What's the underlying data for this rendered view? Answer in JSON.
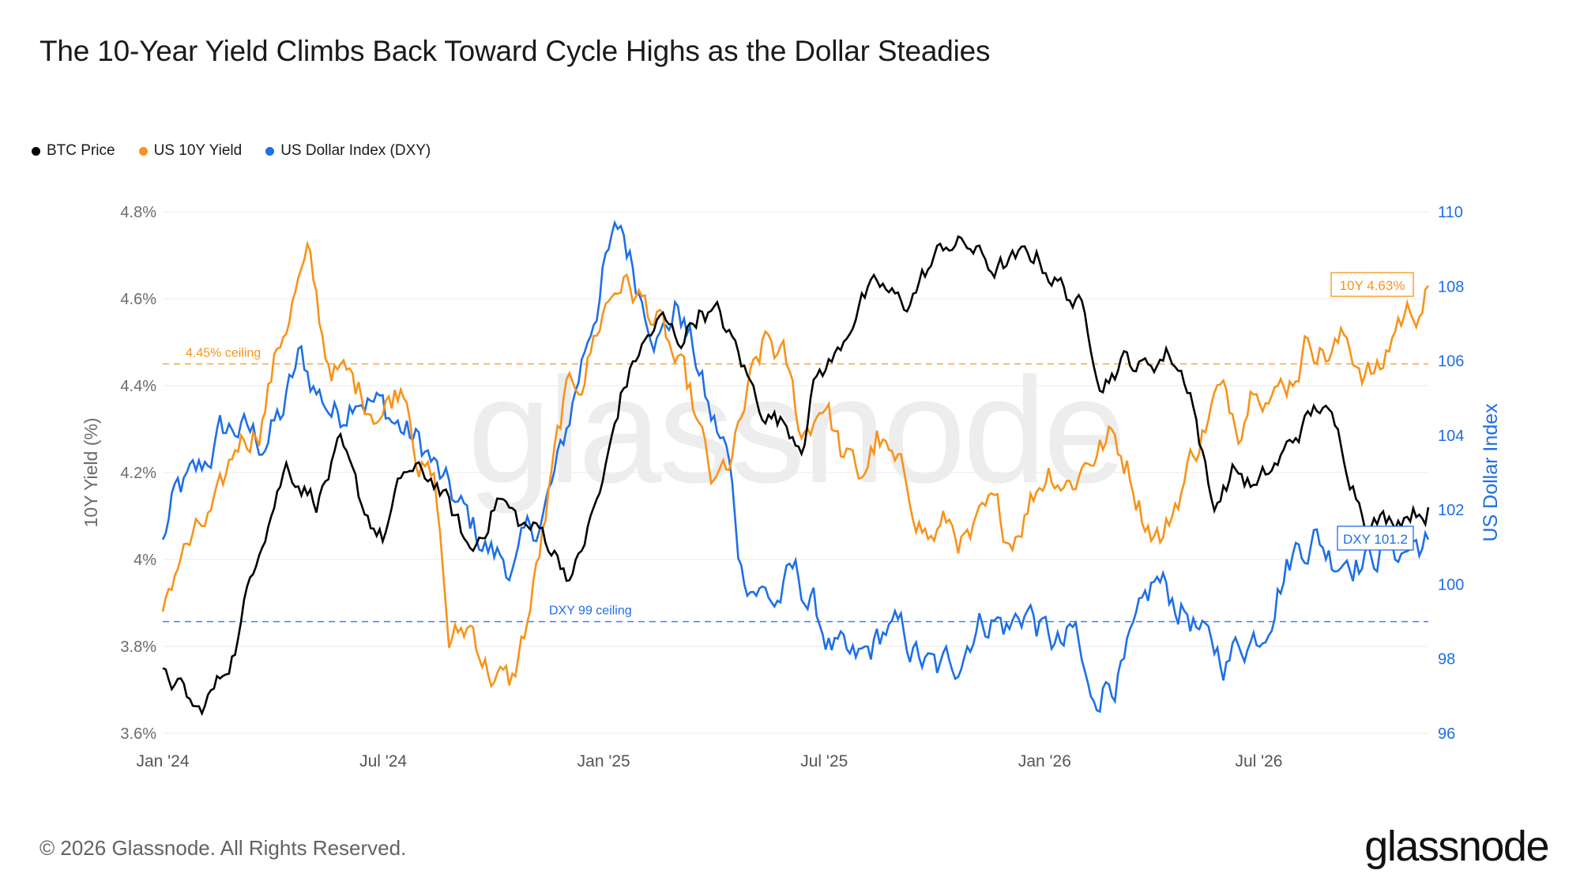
{
  "title": "The 10-Year Yield Climbs Back Toward Cycle Highs as the Dollar Steadies",
  "legend": [
    {
      "label": "BTC Price",
      "color": "#000000"
    },
    {
      "label": "US 10Y Yield",
      "color": "#f7931a"
    },
    {
      "label": "US Dollar Index (DXY)",
      "color": "#1e6fe6"
    }
  ],
  "footer": "© 2026 Glassnode. All Rights Reserved.",
  "brand": "glassnode",
  "watermark": "glassnode",
  "chart_data": {
    "type": "line",
    "x_ticks": [
      "Jan '24",
      "Jul '24",
      "Jan '25",
      "Jul '25",
      "Jan '26",
      "Jul '26"
    ],
    "x_range": [
      "2024-01",
      "2026-07"
    ],
    "left_axis": {
      "label": "10Y Yield (%)",
      "ticks": [
        "3.6%",
        "3.8%",
        "4%",
        "4.2%",
        "4.4%",
        "4.6%",
        "4.8%"
      ],
      "range": [
        3.6,
        4.8
      ]
    },
    "right_axis": {
      "label": "US Dollar Index",
      "ticks": [
        "96",
        "98",
        "100",
        "102",
        "104",
        "106",
        "108",
        "110"
      ],
      "range": [
        96,
        110
      ]
    },
    "grid": true,
    "legend_position": "top-left",
    "reference_lines": [
      {
        "label": "4.45% ceiling",
        "axis": "left",
        "value": 4.45,
        "color": "#f7931a"
      },
      {
        "label": "DXY 99 ceiling",
        "axis": "right",
        "value": 99,
        "color": "#1e6fe6"
      }
    ],
    "annotations": [
      {
        "label": "10Y 4.63%",
        "series": "US 10Y Yield",
        "color": "#f7931a"
      },
      {
        "label": "DXY 101.2",
        "series": "US Dollar Index (DXY)",
        "color": "#1e6fe6"
      }
    ],
    "series": [
      {
        "name": "BTC Price",
        "axis": "none",
        "color": "#000000",
        "anchors": [
          [
            2024.0,
            3.75
          ],
          [
            2024.04,
            3.7
          ],
          [
            2024.08,
            3.64
          ],
          [
            2024.13,
            3.72
          ],
          [
            2024.17,
            3.82
          ],
          [
            2024.22,
            4.05
          ],
          [
            2024.28,
            4.22
          ],
          [
            2024.35,
            4.14
          ],
          [
            2024.4,
            4.25
          ],
          [
            2024.45,
            4.12
          ],
          [
            2024.5,
            4.05
          ],
          [
            2024.55,
            4.2
          ],
          [
            2024.62,
            4.18
          ],
          [
            2024.7,
            4.01
          ],
          [
            2024.76,
            4.15
          ],
          [
            2024.81,
            4.08
          ],
          [
            2024.86,
            4.06
          ],
          [
            2024.93,
            3.96
          ],
          [
            2025.0,
            4.18
          ],
          [
            2025.04,
            4.38
          ],
          [
            2025.08,
            4.48
          ],
          [
            2025.13,
            4.55
          ],
          [
            2025.17,
            4.5
          ],
          [
            2025.22,
            4.58
          ],
          [
            2025.26,
            4.56
          ],
          [
            2025.3,
            4.48
          ],
          [
            2025.35,
            4.36
          ],
          [
            2025.4,
            4.32
          ],
          [
            2025.45,
            4.28
          ],
          [
            2025.48,
            4.42
          ],
          [
            2025.53,
            4.47
          ],
          [
            2025.58,
            4.6
          ],
          [
            2025.63,
            4.62
          ],
          [
            2025.68,
            4.58
          ],
          [
            2025.73,
            4.66
          ],
          [
            2025.78,
            4.73
          ],
          [
            2025.83,
            4.72
          ],
          [
            2025.88,
            4.67
          ],
          [
            2025.93,
            4.68
          ],
          [
            2025.98,
            4.7
          ],
          [
            2026.03,
            4.64
          ],
          [
            2026.08,
            4.58
          ],
          [
            2026.13,
            4.42
          ],
          [
            2026.18,
            4.46
          ],
          [
            2026.23,
            4.44
          ],
          [
            2026.28,
            4.48
          ],
          [
            2026.33,
            4.4
          ],
          [
            2026.38,
            4.12
          ],
          [
            2026.43,
            4.21
          ],
          [
            2026.48,
            4.16
          ],
          [
            2026.53,
            4.22
          ],
          [
            2026.58,
            4.3
          ],
          [
            2026.63,
            4.36
          ],
          [
            2026.68,
            4.24
          ],
          [
            2026.73,
            4.1
          ],
          [
            2026.78,
            4.09
          ],
          [
            2026.83,
            4.12
          ],
          [
            2026.87,
            4.12
          ]
        ]
      },
      {
        "name": "US 10Y Yield",
        "axis": "left",
        "color": "#f7931a",
        "anchors": [
          [
            2024.0,
            3.88
          ],
          [
            2024.04,
            4.02
          ],
          [
            2024.08,
            4.05
          ],
          [
            2024.13,
            4.12
          ],
          [
            2024.17,
            4.27
          ],
          [
            2024.22,
            4.32
          ],
          [
            2024.26,
            4.48
          ],
          [
            2024.3,
            4.62
          ],
          [
            2024.33,
            4.68
          ],
          [
            2024.37,
            4.47
          ],
          [
            2024.4,
            4.43
          ],
          [
            2024.45,
            4.38
          ],
          [
            2024.5,
            4.35
          ],
          [
            2024.55,
            4.42
          ],
          [
            2024.58,
            4.25
          ],
          [
            2024.62,
            4.15
          ],
          [
            2024.65,
            3.8
          ],
          [
            2024.7,
            3.85
          ],
          [
            2024.74,
            3.75
          ],
          [
            2024.79,
            3.7
          ],
          [
            2024.83,
            3.87
          ],
          [
            2024.87,
            4.1
          ],
          [
            2024.91,
            4.35
          ],
          [
            2024.95,
            4.42
          ],
          [
            2025.0,
            4.58
          ],
          [
            2025.04,
            4.65
          ],
          [
            2025.08,
            4.6
          ],
          [
            2025.12,
            4.55
          ],
          [
            2025.16,
            4.45
          ],
          [
            2025.2,
            4.35
          ],
          [
            2025.25,
            4.15
          ],
          [
            2025.29,
            4.22
          ],
          [
            2025.33,
            4.38
          ],
          [
            2025.37,
            4.5
          ],
          [
            2025.41,
            4.45
          ],
          [
            2025.45,
            4.28
          ],
          [
            2025.5,
            4.38
          ],
          [
            2025.54,
            4.24
          ],
          [
            2025.58,
            4.18
          ],
          [
            2025.62,
            4.28
          ],
          [
            2025.66,
            4.2
          ],
          [
            2025.7,
            4.14
          ],
          [
            2025.74,
            4.05
          ],
          [
            2025.78,
            4.08
          ],
          [
            2025.83,
            4.03
          ],
          [
            2025.88,
            4.1
          ],
          [
            2025.92,
            4.05
          ],
          [
            2025.97,
            4.15
          ],
          [
            2026.01,
            4.22
          ],
          [
            2026.06,
            4.18
          ],
          [
            2026.1,
            4.24
          ],
          [
            2026.15,
            4.28
          ],
          [
            2026.19,
            4.22
          ],
          [
            2026.23,
            4.1
          ],
          [
            2026.27,
            4.05
          ],
          [
            2026.31,
            4.17
          ],
          [
            2026.35,
            4.28
          ],
          [
            2026.39,
            4.38
          ],
          [
            2026.44,
            4.32
          ],
          [
            2026.48,
            4.45
          ],
          [
            2026.52,
            4.38
          ],
          [
            2026.56,
            4.42
          ],
          [
            2026.6,
            4.52
          ],
          [
            2026.64,
            4.48
          ],
          [
            2026.68,
            4.5
          ],
          [
            2026.72,
            4.45
          ],
          [
            2026.76,
            4.42
          ],
          [
            2026.8,
            4.55
          ],
          [
            2026.84,
            4.58
          ],
          [
            2026.87,
            4.63
          ]
        ]
      },
      {
        "name": "US Dollar Index (DXY)",
        "axis": "right",
        "color": "#1e6fe6",
        "anchors": [
          [
            2024.0,
            101.2
          ],
          [
            2024.03,
            102.3
          ],
          [
            2024.08,
            102.8
          ],
          [
            2024.13,
            104.0
          ],
          [
            2024.17,
            104.2
          ],
          [
            2024.22,
            103.8
          ],
          [
            2024.27,
            104.5
          ],
          [
            2024.31,
            106.0
          ],
          [
            2024.35,
            105.2
          ],
          [
            2024.4,
            104.5
          ],
          [
            2024.44,
            105.5
          ],
          [
            2024.49,
            104.8
          ],
          [
            2024.54,
            104.2
          ],
          [
            2024.6,
            103.5
          ],
          [
            2024.64,
            102.5
          ],
          [
            2024.7,
            101.5
          ],
          [
            2024.75,
            100.8
          ],
          [
            2024.8,
            100.5
          ],
          [
            2024.86,
            101.8
          ],
          [
            2024.9,
            103.2
          ],
          [
            2024.95,
            106.0
          ],
          [
            2025.0,
            108.5
          ],
          [
            2025.04,
            109.5
          ],
          [
            2025.08,
            108.0
          ],
          [
            2025.13,
            106.8
          ],
          [
            2025.17,
            107.5
          ],
          [
            2025.21,
            106.0
          ],
          [
            2025.24,
            104.5
          ],
          [
            2025.28,
            103.5
          ],
          [
            2025.31,
            100.5
          ],
          [
            2025.35,
            100.0
          ],
          [
            2025.39,
            99.5
          ],
          [
            2025.43,
            100.2
          ],
          [
            2025.47,
            99.5
          ],
          [
            2025.51,
            98.5
          ],
          [
            2025.56,
            97.6
          ],
          [
            2025.6,
            98.0
          ],
          [
            2025.64,
            98.8
          ],
          [
            2025.68,
            98.5
          ],
          [
            2025.73,
            97.8
          ],
          [
            2025.76,
            97.5
          ],
          [
            2025.8,
            98.0
          ],
          [
            2025.84,
            99.0
          ],
          [
            2025.88,
            99.2
          ],
          [
            2025.92,
            98.8
          ],
          [
            2025.96,
            99.4
          ],
          [
            2026.0,
            98.6
          ],
          [
            2026.04,
            98.2
          ],
          [
            2026.07,
            98.6
          ],
          [
            2026.1,
            96.8
          ],
          [
            2026.14,
            97.5
          ],
          [
            2026.18,
            97.8
          ],
          [
            2026.22,
            98.8
          ],
          [
            2026.25,
            100.0
          ],
          [
            2026.29,
            99.6
          ],
          [
            2026.33,
            99.2
          ],
          [
            2026.37,
            98.2
          ],
          [
            2026.41,
            98.0
          ],
          [
            2026.45,
            98.5
          ],
          [
            2026.49,
            98.8
          ],
          [
            2026.53,
            100.2
          ],
          [
            2026.57,
            101.0
          ],
          [
            2026.61,
            101.4
          ],
          [
            2026.65,
            100.8
          ],
          [
            2026.69,
            101.0
          ],
          [
            2026.73,
            100.7
          ],
          [
            2026.77,
            101.0
          ],
          [
            2026.81,
            100.9
          ],
          [
            2026.84,
            101.1
          ],
          [
            2026.87,
            101.2
          ]
        ]
      }
    ]
  }
}
